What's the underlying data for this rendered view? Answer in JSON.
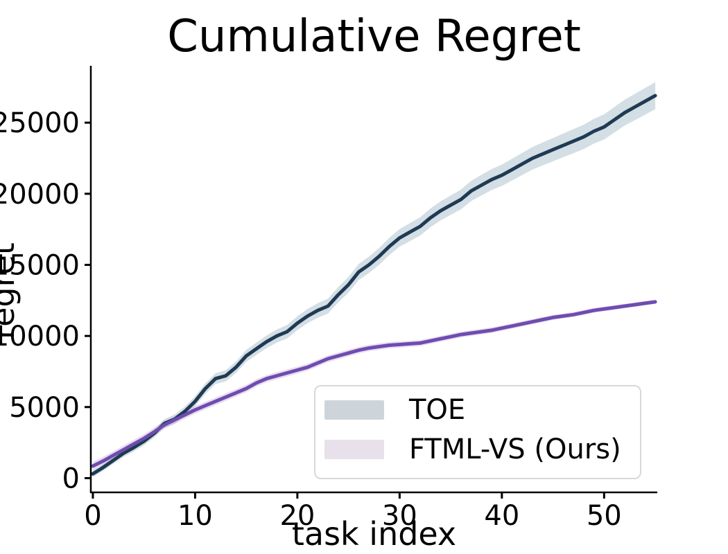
{
  "title": "Cumulative Regret",
  "x_axis": {
    "label": "task index",
    "ticks": [
      0,
      10,
      20,
      30,
      40,
      50
    ]
  },
  "y_axis": {
    "label": "regret",
    "ticks": [
      0,
      5000,
      10000,
      15000,
      20000,
      25000
    ]
  },
  "legend": {
    "items": [
      {
        "label": "TOE",
        "swatch_color": "#cdd5da"
      },
      {
        "label": "FTML-VS (Ours)",
        "swatch_color": "#e8e0ea"
      }
    ]
  },
  "chart_data": {
    "type": "line",
    "title": "Cumulative Regret",
    "xlabel": "task index",
    "ylabel": "regret",
    "x_range": [
      -0.2,
      55.2
    ],
    "y_range": [
      -1000,
      29000
    ],
    "grid": false,
    "legend_position": "lower right",
    "x": [
      0,
      1,
      2,
      3,
      4,
      5,
      6,
      7,
      8,
      9,
      10,
      11,
      12,
      13,
      14,
      15,
      16,
      17,
      18,
      19,
      20,
      21,
      22,
      23,
      24,
      25,
      26,
      27,
      28,
      29,
      30,
      31,
      32,
      33,
      34,
      35,
      36,
      37,
      38,
      39,
      40,
      41,
      42,
      43,
      44,
      45,
      46,
      47,
      48,
      49,
      50,
      51,
      52,
      53,
      54,
      55
    ],
    "series": [
      {
        "name": "TOE",
        "line_color": "#1f3a53",
        "band_color": "#9db6c6",
        "band_opacity": 0.45,
        "band_halfwidth_start": 220,
        "band_halfwidth_end": 950,
        "values": [
          300,
          750,
          1250,
          1750,
          2150,
          2600,
          3150,
          3850,
          4150,
          4700,
          5400,
          6300,
          7000,
          7200,
          7800,
          8600,
          9100,
          9600,
          10000,
          10300,
          10900,
          11400,
          11800,
          12100,
          12900,
          13600,
          14500,
          15000,
          15600,
          16300,
          16900,
          17300,
          17700,
          18300,
          18800,
          19200,
          19600,
          20200,
          20600,
          21000,
          21300,
          21700,
          22100,
          22500,
          22800,
          23100,
          23400,
          23700,
          24000,
          24400,
          24700,
          25200,
          25700,
          26100,
          26500,
          26900
        ]
      },
      {
        "name": "FTML-VS (Ours)",
        "line_color": "#6e4cb0",
        "band_color": "#c9a8d6",
        "band_opacity": 0.4,
        "band_halfwidth_start": 300,
        "band_halfwidth_end": 150,
        "values": [
          850,
          1200,
          1600,
          2000,
          2400,
          2800,
          3250,
          3750,
          4100,
          4450,
          4800,
          5100,
          5400,
          5700,
          6000,
          6300,
          6700,
          7000,
          7200,
          7400,
          7600,
          7800,
          8100,
          8400,
          8600,
          8800,
          9000,
          9150,
          9250,
          9350,
          9400,
          9450,
          9500,
          9650,
          9800,
          9950,
          10100,
          10200,
          10300,
          10400,
          10550,
          10700,
          10850,
          11000,
          11150,
          11300,
          11400,
          11500,
          11650,
          11800,
          11900,
          12000,
          12100,
          12200,
          12300,
          12400
        ]
      }
    ]
  }
}
